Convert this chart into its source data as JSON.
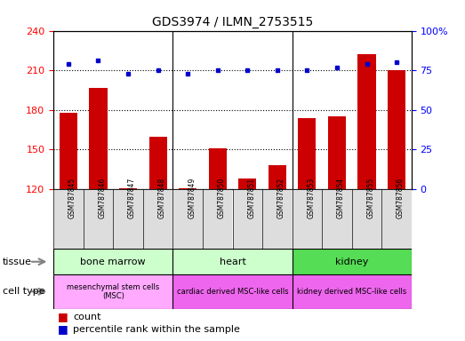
{
  "title": "GDS3974 / ILMN_2753515",
  "samples": [
    "GSM787845",
    "GSM787846",
    "GSM787847",
    "GSM787848",
    "GSM787849",
    "GSM787850",
    "GSM787851",
    "GSM787852",
    "GSM787853",
    "GSM787854",
    "GSM787855",
    "GSM787856"
  ],
  "counts": [
    178,
    197,
    121,
    160,
    121,
    151,
    128,
    138,
    174,
    175,
    222,
    210
  ],
  "percentile_ranks": [
    79,
    81,
    73,
    75,
    73,
    75,
    75,
    75,
    75,
    77,
    79,
    80
  ],
  "ylim_left": [
    120,
    240
  ],
  "ylim_right": [
    0,
    100
  ],
  "yticks_left": [
    120,
    150,
    180,
    210,
    240
  ],
  "yticks_right": [
    0,
    25,
    50,
    75,
    100
  ],
  "bar_color": "#CC0000",
  "dot_color": "#0000CC",
  "tissue_groups": [
    {
      "label": "bone marrow",
      "cols": [
        0,
        1,
        2,
        3
      ],
      "color": "#CCFFCC"
    },
    {
      "label": "heart",
      "cols": [
        4,
        5,
        6,
        7
      ],
      "color": "#CCFFCC"
    },
    {
      "label": "kidney",
      "cols": [
        8,
        9,
        10,
        11
      ],
      "color": "#55DD55"
    }
  ],
  "celltype_groups": [
    {
      "label": "mesenchymal stem cells\n(MSC)",
      "cols": [
        0,
        1,
        2,
        3
      ],
      "color": "#FFAAFF"
    },
    {
      "label": "cardiac derived MSC-like cells",
      "cols": [
        4,
        5,
        6,
        7
      ],
      "color": "#EE66EE"
    },
    {
      "label": "kidney derived MSC-like cells",
      "cols": [
        8,
        9,
        10,
        11
      ],
      "color": "#EE66EE"
    }
  ],
  "sample_box_color": "#DDDDDD",
  "bg_color": "#FFFFFF",
  "legend_count_label": "count",
  "legend_pct_label": "percentile rank within the sample"
}
